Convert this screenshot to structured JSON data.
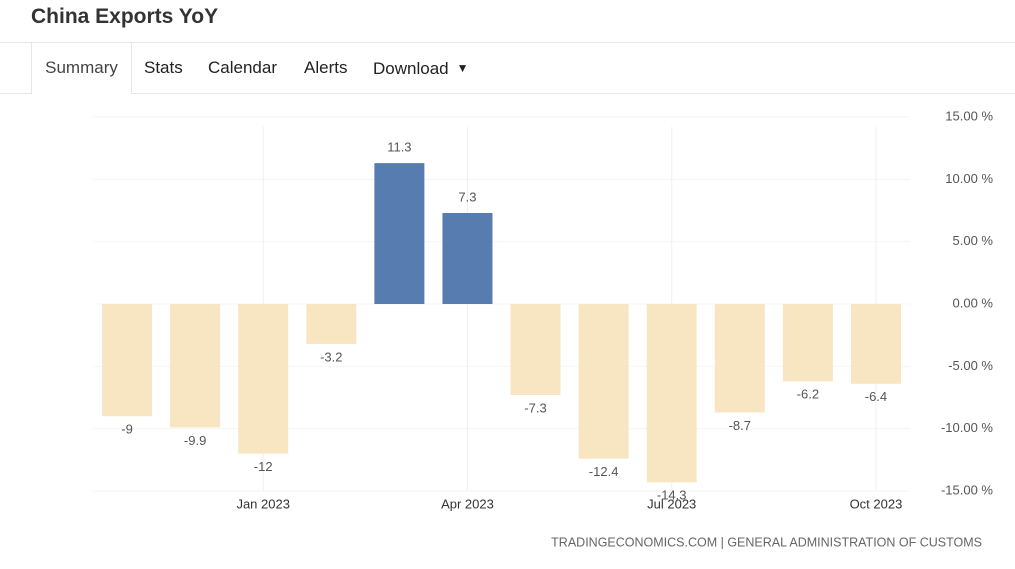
{
  "header": {
    "title": "China Exports YoY"
  },
  "tabs": [
    "Summary",
    "Stats",
    "Calendar",
    "Alerts",
    "Download"
  ],
  "chart_data": {
    "type": "bar",
    "categories": [
      null,
      null,
      "Jan 2023",
      null,
      null,
      "Apr 2023",
      null,
      null,
      "Jul 2023",
      null,
      null,
      "Oct 2023"
    ],
    "values": [
      -9,
      -9.9,
      -12,
      -3.2,
      11.3,
      7.3,
      -7.3,
      -12.4,
      -14.3,
      -8.7,
      -6.2,
      -6.4
    ],
    "positive_color": "#577db0",
    "negative_color": "#f8e6c3",
    "ylim": [
      -15,
      15
    ],
    "yticks": [
      {
        "value": 15,
        "label": "15.00 %"
      },
      {
        "value": 10,
        "label": "10.00 %"
      },
      {
        "value": 5,
        "label": "5.00 %"
      },
      {
        "value": 0,
        "label": "0.00 %"
      },
      {
        "value": -5,
        "label": "-5.00 %"
      },
      {
        "value": -10,
        "label": "-10.00 %"
      },
      {
        "value": -15,
        "label": "-15.00 %"
      }
    ],
    "grid": true,
    "source": "TRADINGECONOMICS.COM | GENERAL ADMINISTRATION OF CUSTOMS"
  }
}
